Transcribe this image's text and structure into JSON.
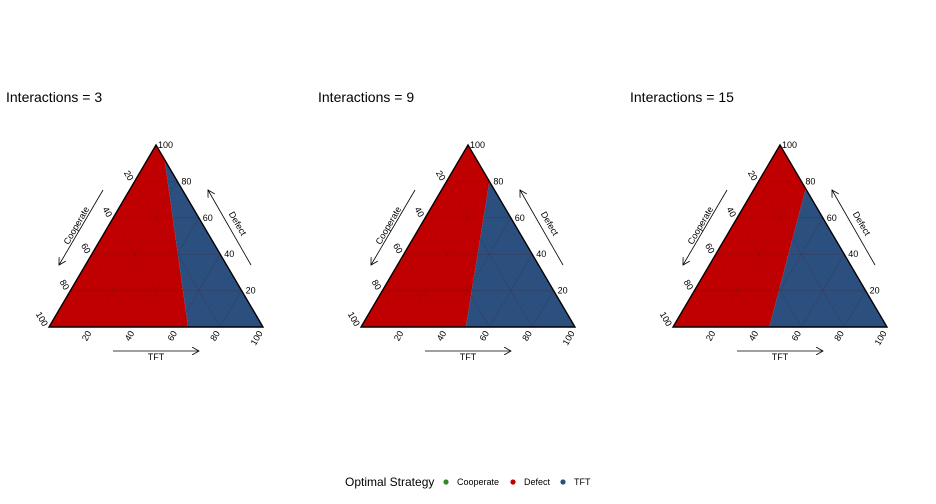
{
  "chart_data": [
    {
      "type": "ternary-region",
      "title": "Interactions = 3",
      "axes": {
        "bottom": "TFT",
        "left": "Cooperate",
        "right": "Defect"
      },
      "ticks": [
        "20",
        "40",
        "60",
        "80",
        "100"
      ],
      "boundary": {
        "top_tft": 4,
        "bottom_tft": 65
      },
      "regions": [
        {
          "strategy": "Defect",
          "side": "left"
        },
        {
          "strategy": "TFT",
          "side": "right"
        }
      ]
    },
    {
      "type": "ternary-region",
      "title": "Interactions = 9",
      "axes": {
        "bottom": "TFT",
        "left": "Cooperate",
        "right": "Defect"
      },
      "ticks": [
        "20",
        "40",
        "60",
        "80",
        "100"
      ],
      "boundary": {
        "top_tft": 10,
        "bottom_tft": 49
      },
      "regions": [
        {
          "strategy": "Defect",
          "side": "left"
        },
        {
          "strategy": "TFT",
          "side": "right"
        }
      ]
    },
    {
      "type": "ternary-region",
      "title": "Interactions = 15",
      "axes": {
        "bottom": "TFT",
        "left": "Cooperate",
        "right": "Defect"
      },
      "ticks": [
        "20",
        "40",
        "60",
        "80",
        "100"
      ],
      "boundary": {
        "top_tft": 12,
        "bottom_tft": 45
      },
      "regions": [
        {
          "strategy": "Defect",
          "side": "left"
        },
        {
          "strategy": "TFT",
          "side": "right"
        }
      ]
    }
  ],
  "legend": {
    "title": "Optimal Strategy",
    "placement": "bottom",
    "items": [
      {
        "label": "Cooperate",
        "color": "#2e8b1f"
      },
      {
        "label": "Defect",
        "color": "#c00000"
      },
      {
        "label": "TFT",
        "color": "#2b4f7e"
      }
    ]
  },
  "colors": {
    "Defect": "#c00000",
    "TFT": "#2b4f7e",
    "grid": "#7a2222",
    "gridBlue": "#3f5f88"
  }
}
